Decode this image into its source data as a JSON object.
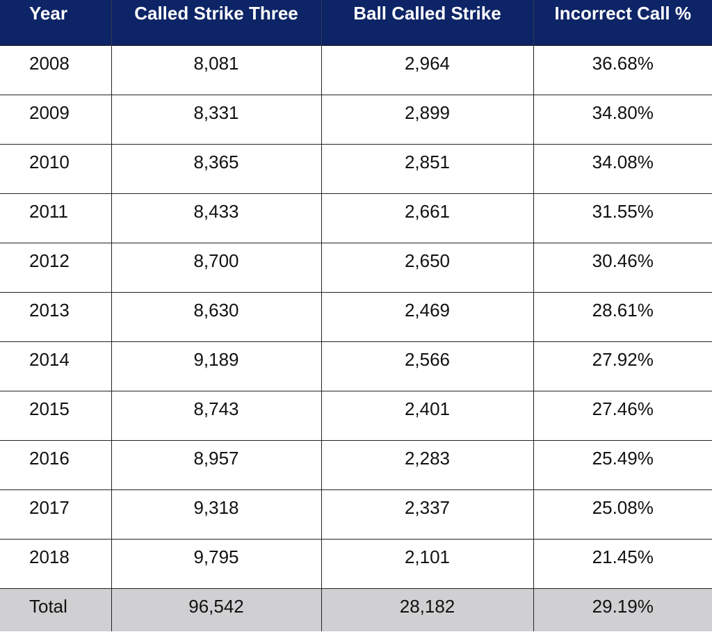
{
  "chart_data": {
    "type": "table",
    "columns": [
      "Year",
      "Called Strike Three",
      "Ball Called Strike",
      "Incorrect Call %"
    ],
    "rows": [
      [
        "2008",
        "8,081",
        "2,964",
        "36.68%"
      ],
      [
        "2009",
        "8,331",
        "2,899",
        "34.80%"
      ],
      [
        "2010",
        "8,365",
        "2,851",
        "34.08%"
      ],
      [
        "2011",
        "8,433",
        "2,661",
        "31.55%"
      ],
      [
        "2012",
        "8,700",
        "2,650",
        "30.46%"
      ],
      [
        "2013",
        "8,630",
        "2,469",
        "28.61%"
      ],
      [
        "2014",
        "9,189",
        "2,566",
        "27.92%"
      ],
      [
        "2015",
        "8,743",
        "2,401",
        "27.46%"
      ],
      [
        "2016",
        "8,957",
        "2,283",
        "25.49%"
      ],
      [
        "2017",
        "9,318",
        "2,337",
        "25.08%"
      ],
      [
        "2018",
        "9,795",
        "2,101",
        "21.45%"
      ]
    ],
    "total": [
      "Total",
      "96,542",
      "28,182",
      "29.19%"
    ]
  },
  "colors": {
    "header_bg": "#0d2466",
    "header_text": "#ffffff",
    "total_bg": "#d0d0d2"
  }
}
